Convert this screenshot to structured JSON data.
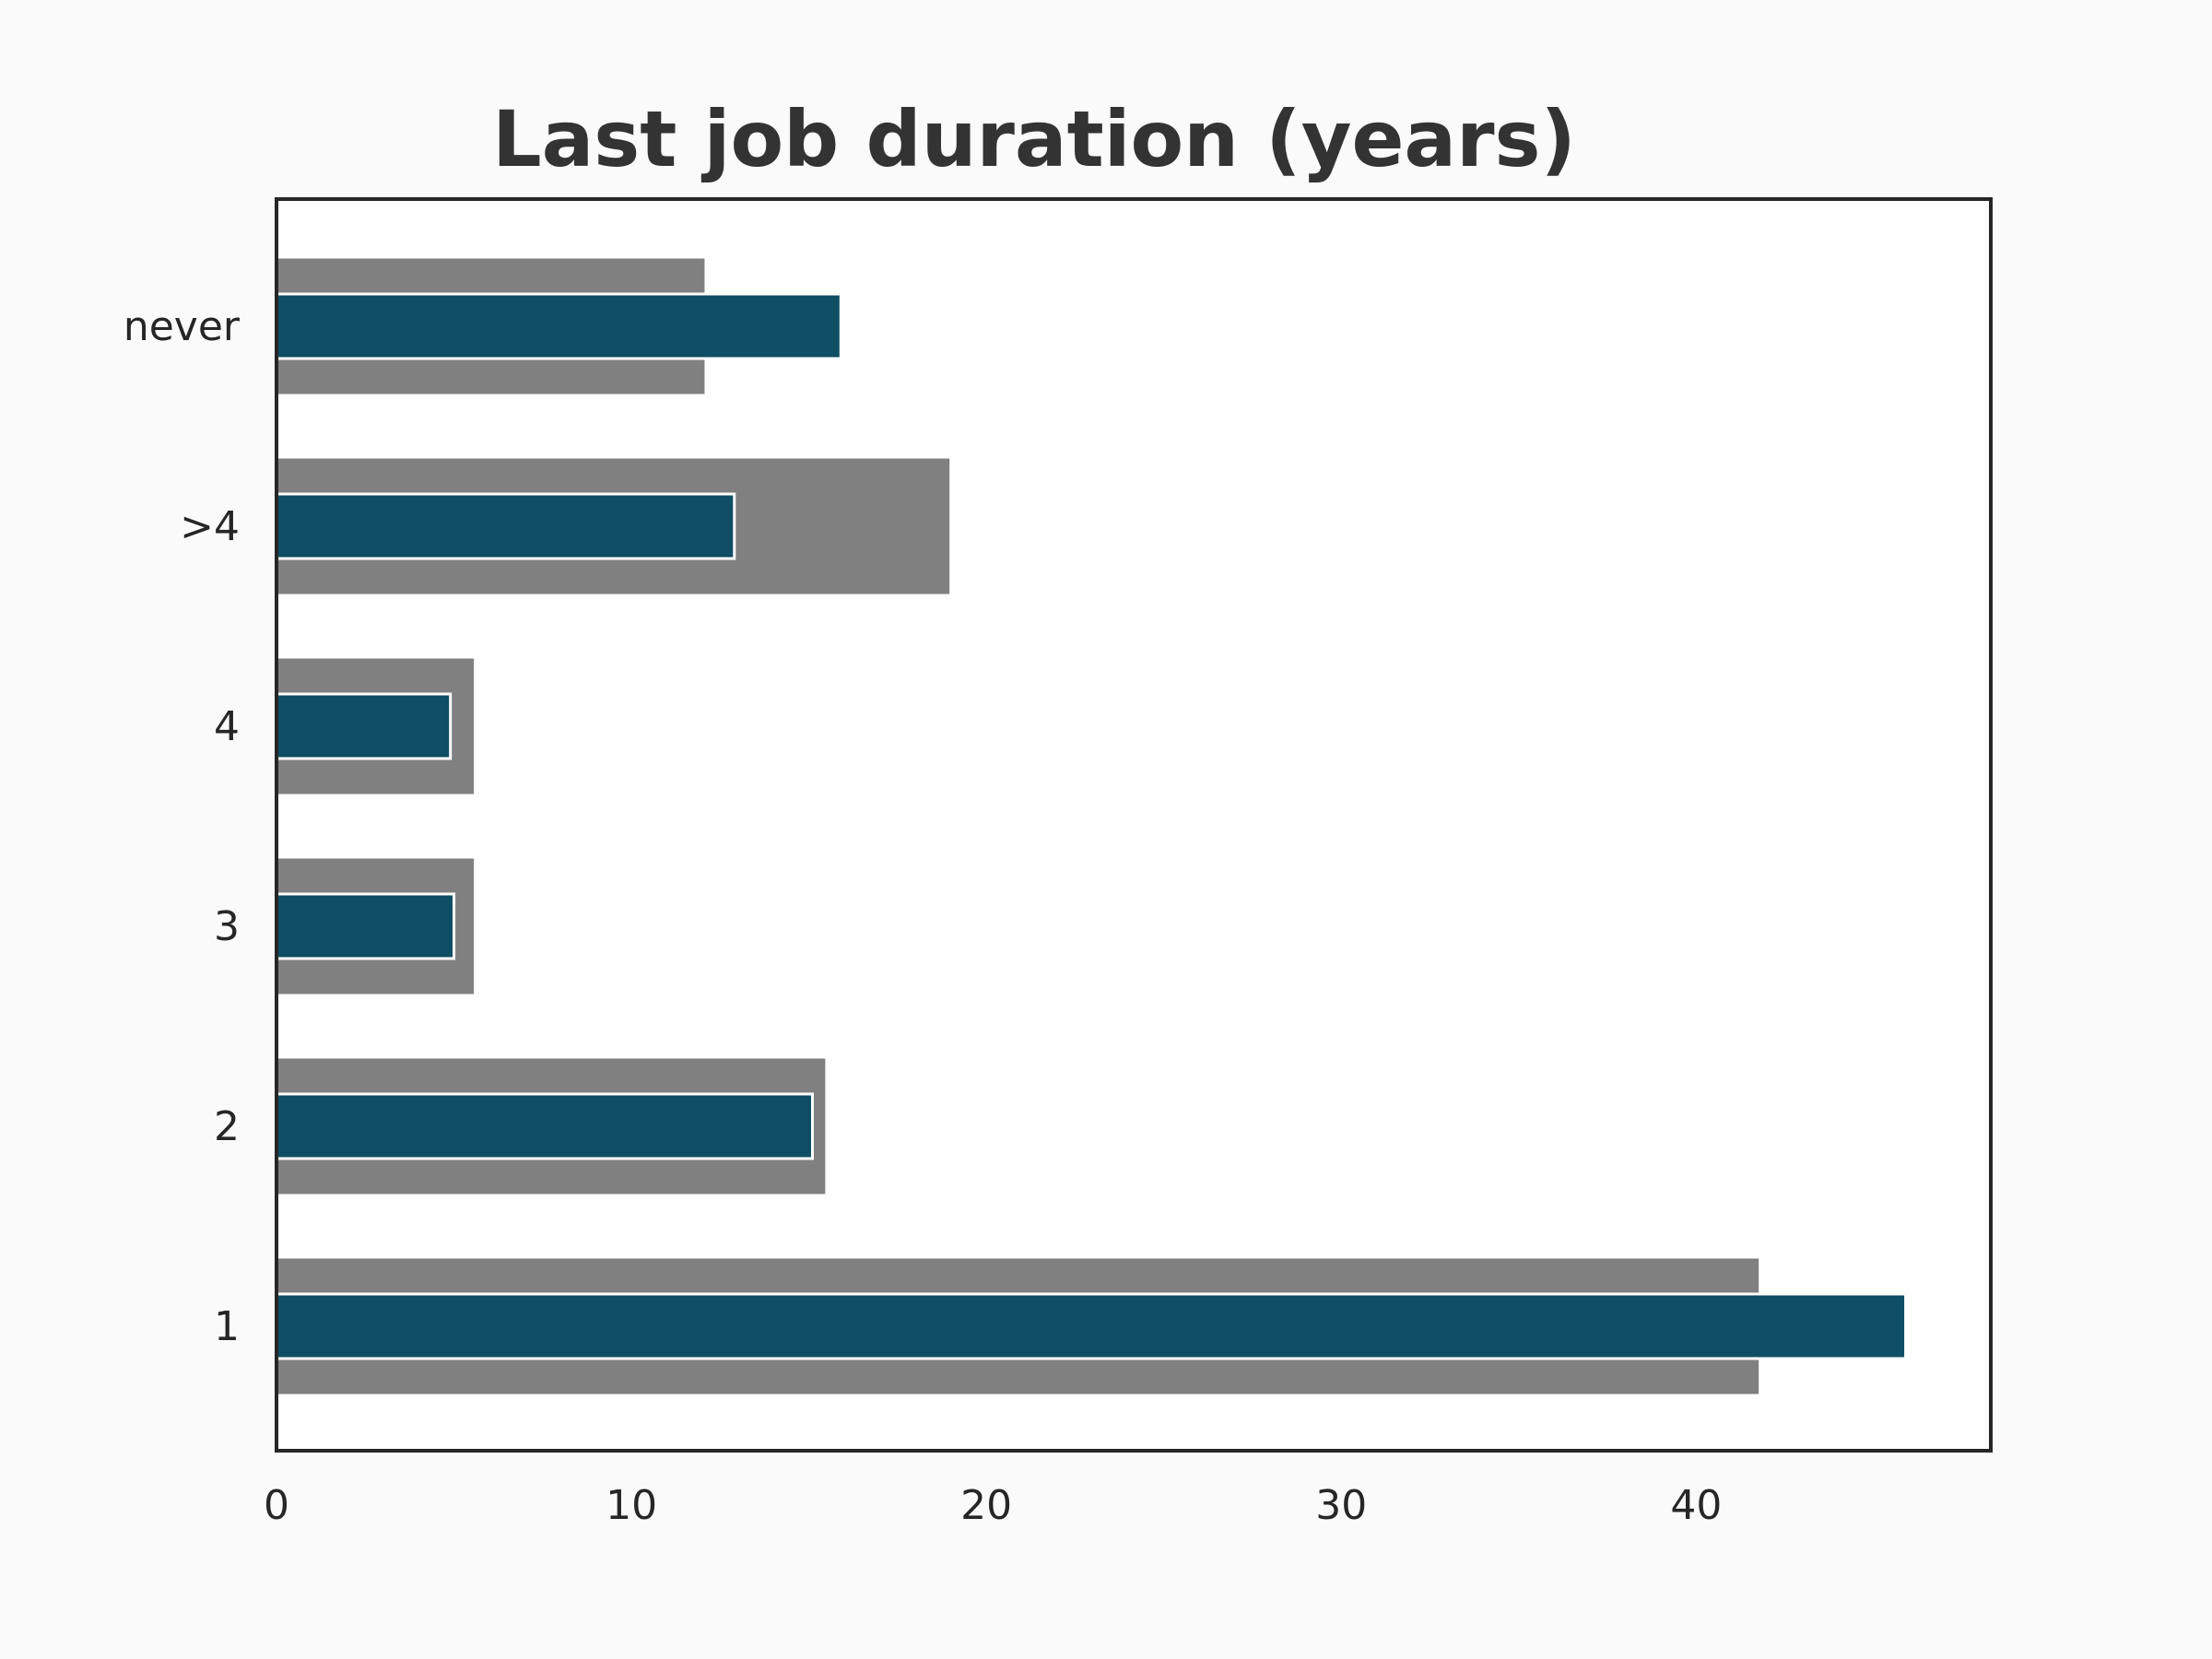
{
  "chart_data": {
    "type": "bar",
    "orientation": "horizontal",
    "title": "Last job duration (years)",
    "xlabel": "",
    "ylabel": "",
    "categories": [
      "1",
      "2",
      "3",
      "4",
      ">4",
      "never"
    ],
    "series": [
      {
        "values": [
          41.8,
          15.5,
          5.6,
          5.6,
          19.0,
          12.1
        ]
      },
      {
        "values": [
          45.9,
          15.1,
          5.0,
          4.9,
          12.9,
          15.9
        ]
      }
    ],
    "xlim": [
      0,
      48.3
    ],
    "xticks": [
      0,
      10,
      20,
      30,
      40
    ],
    "grid": false,
    "colors": {
      "background": "#fafafa",
      "plot_bg": "#ffffff",
      "series_0": "#808080",
      "series_1": "#0f4e64",
      "edge": "#ffffff",
      "frame": "#262626",
      "title": "#333333"
    }
  }
}
